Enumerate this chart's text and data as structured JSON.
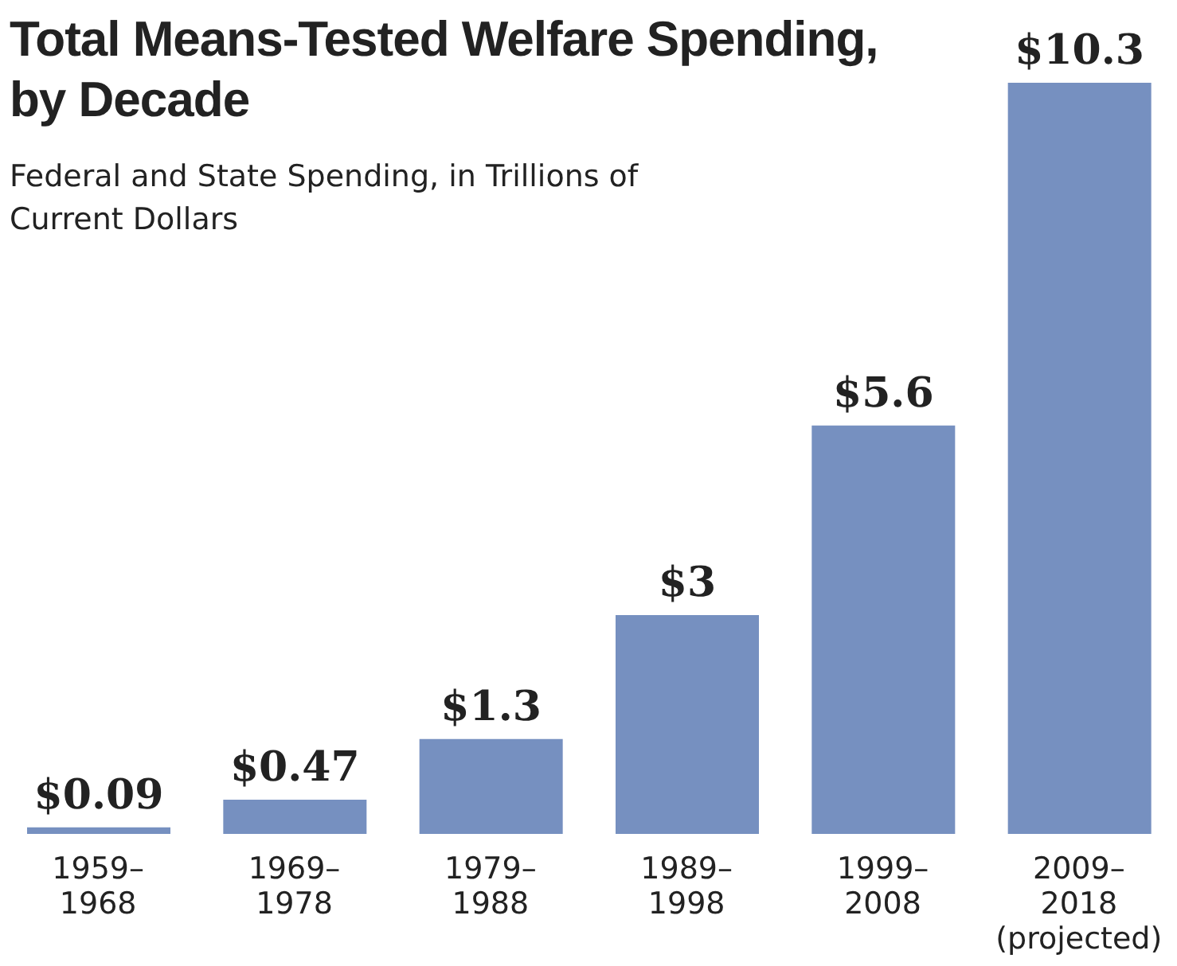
{
  "chart_data": {
    "type": "bar",
    "title": "Total Means-Tested Welfare Spending, by Decade",
    "subtitle": "Federal and State Spending, in Trillions of Current Dollars",
    "categories": [
      "1959–\n1968",
      "1969–\n1978",
      "1979–\n1988",
      "1989–\n1998",
      "1999–\n2008",
      "2009–\n2018\n(projected)"
    ],
    "values": [
      0.09,
      0.47,
      1.3,
      3,
      5.6,
      10.3
    ],
    "value_labels": [
      "$0.09",
      "$0.47",
      "$1.3",
      "$3",
      "$5.6",
      "$10.3"
    ],
    "color": "#7690c0",
    "grid": false,
    "legend": false
  }
}
